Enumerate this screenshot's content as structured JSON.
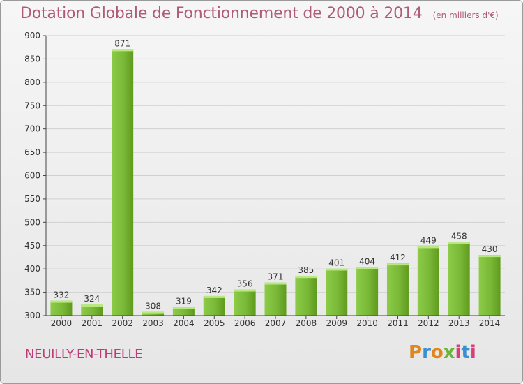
{
  "title": "Dotation Globale de Fonctionnement de 2000 à 2014",
  "subtitle": "(en milliers d'€)",
  "commune": "NEUILLY-EN-THELLE",
  "logo": {
    "letters": [
      "P",
      "r",
      "o",
      "x",
      "i",
      "t",
      "i"
    ],
    "colors": [
      "#e0861a",
      "#3a8fd0",
      "#e0861a",
      "#6bb53d",
      "#d63f7a",
      "#3a8fd0",
      "#d63f7a"
    ]
  },
  "colors": {
    "title": "#b05a78",
    "bar_light": "#9ed85a",
    "bar_dark": "#5f9a1c",
    "axis": "#444444",
    "grid": "#cccccc"
  },
  "chart_data": {
    "type": "bar",
    "title": "Dotation Globale de Fonctionnement de 2000 à 2014",
    "xlabel": "",
    "ylabel": "",
    "categories": [
      "2000",
      "2001",
      "2002",
      "2003",
      "2004",
      "2005",
      "2006",
      "2007",
      "2008",
      "2009",
      "2010",
      "2011",
      "2012",
      "2013",
      "2014"
    ],
    "values": [
      332,
      324,
      871,
      308,
      319,
      342,
      356,
      371,
      385,
      401,
      404,
      412,
      449,
      458,
      430
    ],
    "ylim": [
      300,
      900
    ],
    "yticks": [
      300,
      350,
      400,
      450,
      500,
      550,
      600,
      650,
      700,
      750,
      800,
      850,
      900
    ],
    "grid": true
  }
}
